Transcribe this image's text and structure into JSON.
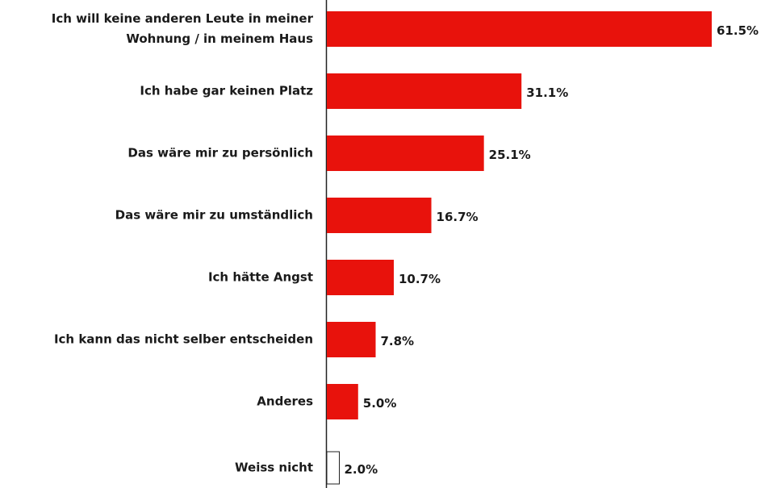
{
  "chart_data": {
    "type": "bar",
    "orientation": "horizontal",
    "categories": [
      "Ich will keine anderen Leute in meiner\nWohnung / in meinem Haus",
      "Ich habe gar keinen Platz",
      "Das wäre mir zu persönlich",
      "Das wäre mir zu umständlich",
      "Ich hätte Angst",
      "Ich kann das nicht selber entscheiden",
      "Anderes",
      "Weiss nicht"
    ],
    "values": [
      61.5,
      31.1,
      25.1,
      16.7,
      10.7,
      7.8,
      5.0,
      2.0
    ],
    "value_labels": [
      "61.5%",
      "31.1%",
      "25.1%",
      "16.7%",
      "10.7%",
      "7.8%",
      "5.0%",
      "2.0%"
    ],
    "colors": [
      "#e8120c",
      "#e8120c",
      "#e8120c",
      "#e8120c",
      "#e8120c",
      "#e8120c",
      "#e8120c",
      "#ffffff"
    ]
  }
}
